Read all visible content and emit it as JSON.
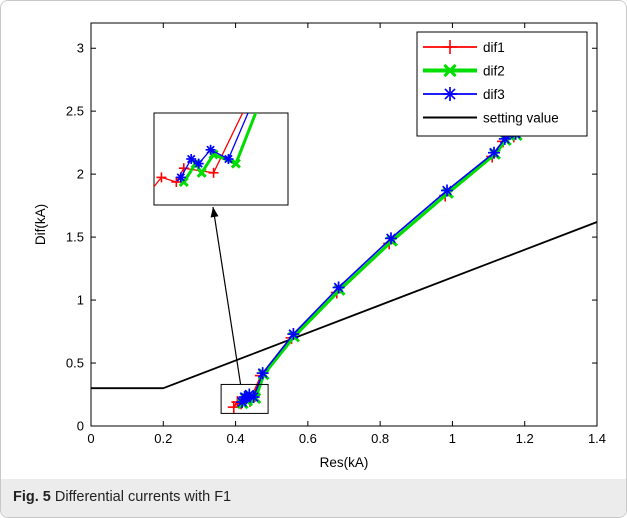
{
  "chart_data": {
    "type": "line",
    "xlabel": "Res(kA)",
    "ylabel": "Dif(kA)",
    "xlim": [
      0,
      1.4
    ],
    "ylim": [
      0,
      3.2
    ],
    "xticks": [
      "0",
      "0.2",
      "0.4",
      "0.6",
      "0.8",
      "1",
      "1.2",
      "1.4"
    ],
    "yticks": [
      "0",
      "0.5",
      "1",
      "1.5",
      "2",
      "2.5",
      "3"
    ],
    "grid": false,
    "legend_position": "top-right",
    "series": [
      {
        "name": "dif1",
        "color": "#ff0000",
        "marker": "plus",
        "x": [
          0.395,
          0.405,
          0.415,
          0.42,
          0.44,
          0.47,
          0.555,
          0.68,
          0.825,
          0.98,
          1.11,
          1.14,
          1.17,
          1.21
        ],
        "y": [
          0.15,
          0.19,
          0.18,
          0.21,
          0.2,
          0.4,
          0.7,
          1.06,
          1.45,
          1.83,
          2.14,
          2.26,
          2.3,
          2.38
        ]
      },
      {
        "name": "dif2",
        "color": "#00dd00",
        "marker": "x",
        "x": [
          0.42,
          0.428,
          0.432,
          0.44,
          0.455,
          0.478,
          0.562,
          0.688,
          0.833,
          0.988,
          1.118,
          1.148,
          1.178,
          1.215
        ],
        "y": [
          0.18,
          0.22,
          0.2,
          0.24,
          0.22,
          0.41,
          0.71,
          1.08,
          1.47,
          1.85,
          2.16,
          2.27,
          2.31,
          2.38
        ]
      },
      {
        "name": "dif3",
        "color": "#0000ff",
        "marker": "star",
        "x": [
          0.418,
          0.425,
          0.43,
          0.438,
          0.45,
          0.475,
          0.56,
          0.685,
          0.83,
          0.985,
          1.115,
          1.145,
          1.175,
          1.212
        ],
        "y": [
          0.19,
          0.23,
          0.22,
          0.25,
          0.23,
          0.42,
          0.73,
          1.1,
          1.49,
          1.87,
          2.17,
          2.28,
          2.32,
          2.38
        ]
      },
      {
        "name": "setting value",
        "color": "#000000",
        "marker": "none",
        "x": [
          0,
          0.2,
          1.4
        ],
        "y": [
          0.3,
          0.3,
          1.62
        ]
      }
    ],
    "zoom_box": {
      "x_range": [
        0.36,
        0.49
      ],
      "y_range": [
        0.1,
        0.33
      ]
    }
  },
  "caption": {
    "label": "Fig. 5",
    "text": "Differential currents with F1"
  }
}
